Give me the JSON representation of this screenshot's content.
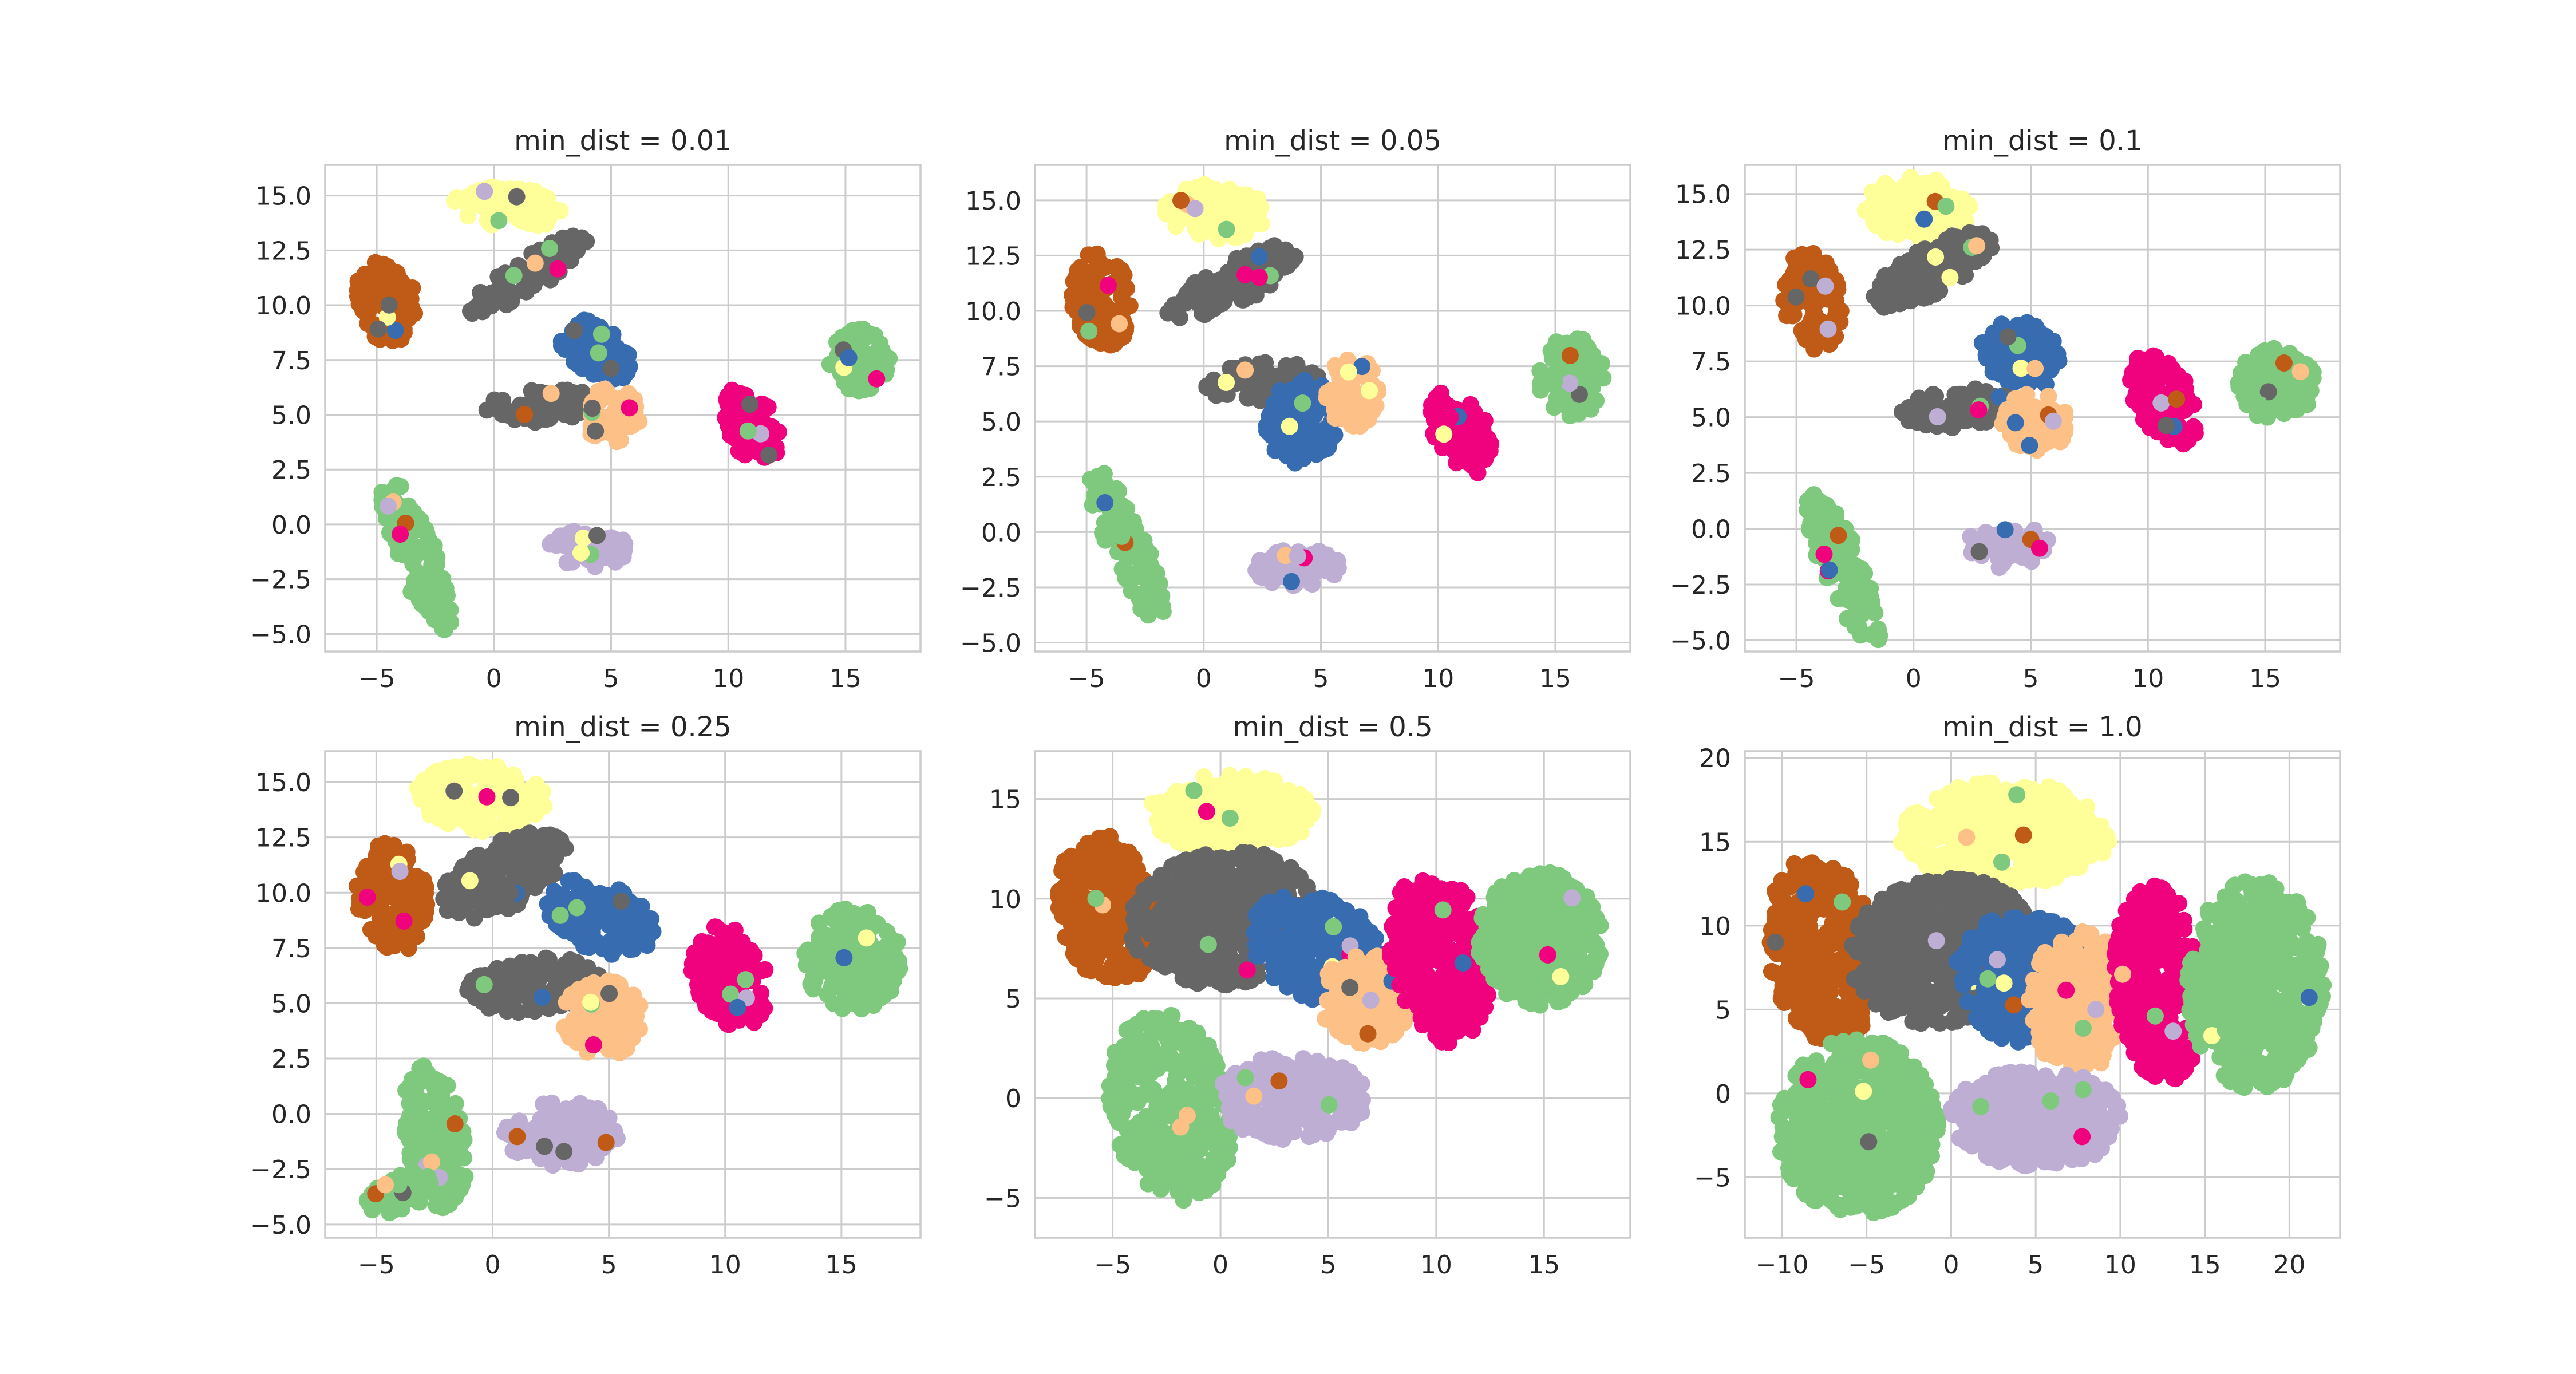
{
  "chart_data": [
    {
      "type": "scatter",
      "title": "min_dist = 0.01",
      "xlim": [
        -7.2,
        18.2
      ],
      "ylim": [
        -5.8,
        16.4
      ],
      "xticks": [
        -5,
        0,
        5,
        10,
        15
      ],
      "yticks": [
        -5.0,
        -2.5,
        0.0,
        2.5,
        5.0,
        7.5,
        10.0,
        12.5,
        15.0
      ],
      "xtick_labels": [
        "−5",
        "0",
        "5",
        "10",
        "15"
      ],
      "ytick_labels": [
        "−5.0",
        "−2.5",
        "0.0",
        "2.5",
        "5.0",
        "7.5",
        "10.0",
        "12.5",
        "15.0"
      ],
      "grid": true,
      "clusters": [
        {
          "color": "#ffff99",
          "cx": 0.7,
          "cy": 14.5,
          "rx": 2.5,
          "ry": 1.0,
          "angle": -5
        },
        {
          "color": "#bf5b17",
          "cx": -4.6,
          "cy": 10.2,
          "rx": 1.3,
          "ry": 2.0,
          "angle": 10
        },
        {
          "color": "#666666",
          "cx": 1.5,
          "cy": 11.4,
          "rx": 3.2,
          "ry": 0.8,
          "angle": 35
        },
        {
          "color": "#386cb0",
          "cx": 4.3,
          "cy": 8.0,
          "rx": 1.9,
          "ry": 1.1,
          "angle": -40
        },
        {
          "color": "#666666",
          "cx": 2.0,
          "cy": 5.4,
          "rx": 2.6,
          "ry": 0.8,
          "angle": 5
        },
        {
          "color": "#fdc086",
          "cx": 5.0,
          "cy": 5.0,
          "rx": 1.3,
          "ry": 1.3,
          "angle": 0
        },
        {
          "color": "#f0027f",
          "cx": 11.0,
          "cy": 4.5,
          "rx": 1.1,
          "ry": 2.0,
          "angle": 20
        },
        {
          "color": "#7fc97f",
          "cx": 15.6,
          "cy": 7.5,
          "rx": 1.4,
          "ry": 1.5,
          "angle": 0
        },
        {
          "color": "#7fc97f",
          "cx": -3.3,
          "cy": -1.4,
          "rx": 0.9,
          "ry": 3.8,
          "angle": 20
        },
        {
          "color": "#beaed4",
          "cx": 4.0,
          "cy": -1.1,
          "rx": 1.8,
          "ry": 0.9,
          "angle": 0
        }
      ]
    },
    {
      "type": "scatter",
      "title": "min_dist = 0.05",
      "xlim": [
        -7.2,
        18.2
      ],
      "ylim": [
        -5.4,
        16.6
      ],
      "xticks": [
        -5,
        0,
        5,
        10,
        15
      ],
      "yticks": [
        -5.0,
        -2.5,
        0.0,
        2.5,
        5.0,
        7.5,
        10.0,
        12.5,
        15.0
      ],
      "xtick_labels": [
        "−5",
        "0",
        "5",
        "10",
        "15"
      ],
      "ytick_labels": [
        "−5.0",
        "−2.5",
        "0.0",
        "2.5",
        "5.0",
        "7.5",
        "10.0",
        "12.5",
        "15.0"
      ],
      "grid": true,
      "clusters": [
        {
          "color": "#ffff99",
          "cx": 0.5,
          "cy": 14.5,
          "rx": 2.3,
          "ry": 1.3,
          "angle": -5
        },
        {
          "color": "#bf5b17",
          "cx": -4.4,
          "cy": 10.5,
          "rx": 1.4,
          "ry": 2.2,
          "angle": 10
        },
        {
          "color": "#666666",
          "cx": 1.2,
          "cy": 11.2,
          "rx": 3.3,
          "ry": 1.0,
          "angle": 30
        },
        {
          "color": "#666666",
          "cx": 2.5,
          "cy": 6.8,
          "rx": 2.5,
          "ry": 0.9,
          "angle": 5
        },
        {
          "color": "#386cb0",
          "cx": 4.2,
          "cy": 5.0,
          "rx": 1.6,
          "ry": 2.0,
          "angle": -10
        },
        {
          "color": "#fdc086",
          "cx": 6.3,
          "cy": 6.3,
          "rx": 1.2,
          "ry": 1.7,
          "angle": 0
        },
        {
          "color": "#f0027f",
          "cx": 11.0,
          "cy": 4.5,
          "rx": 1.2,
          "ry": 2.1,
          "angle": 25
        },
        {
          "color": "#7fc97f",
          "cx": 15.7,
          "cy": 7.0,
          "rx": 1.5,
          "ry": 1.9,
          "angle": 0
        },
        {
          "color": "#7fc97f",
          "cx": -3.3,
          "cy": -0.6,
          "rx": 0.9,
          "ry": 3.8,
          "angle": 22
        },
        {
          "color": "#beaed4",
          "cx": 4.0,
          "cy": -1.6,
          "rx": 1.9,
          "ry": 0.9,
          "angle": 0
        }
      ]
    },
    {
      "type": "scatter",
      "title": "min_dist = 0.1",
      "xlim": [
        -7.2,
        18.2
      ],
      "ylim": [
        -5.5,
        16.3
      ],
      "xticks": [
        -5,
        0,
        5,
        10,
        15
      ],
      "yticks": [
        -5.0,
        -2.5,
        0.0,
        2.5,
        5.0,
        7.5,
        10.0,
        12.5,
        15.0
      ],
      "xtick_labels": [
        "−5",
        "0",
        "5",
        "10",
        "15"
      ],
      "ytick_labels": [
        "−5.0",
        "−2.5",
        "0.0",
        "2.5",
        "5.0",
        "7.5",
        "10.0",
        "12.5",
        "15.0"
      ],
      "grid": true,
      "clusters": [
        {
          "color": "#ffff99",
          "cx": 0.2,
          "cy": 14.3,
          "rx": 2.4,
          "ry": 1.5,
          "angle": -5
        },
        {
          "color": "#bf5b17",
          "cx": -4.3,
          "cy": 10.2,
          "rx": 1.3,
          "ry": 2.3,
          "angle": 10
        },
        {
          "color": "#666666",
          "cx": 0.8,
          "cy": 11.6,
          "rx": 3.0,
          "ry": 1.1,
          "angle": 30
        },
        {
          "color": "#386cb0",
          "cx": 4.6,
          "cy": 7.8,
          "rx": 1.9,
          "ry": 1.5,
          "angle": -35
        },
        {
          "color": "#666666",
          "cx": 2.0,
          "cy": 5.4,
          "rx": 2.6,
          "ry": 0.9,
          "angle": 5
        },
        {
          "color": "#fdc086",
          "cx": 5.2,
          "cy": 4.8,
          "rx": 1.5,
          "ry": 1.4,
          "angle": 0
        },
        {
          "color": "#f0027f",
          "cx": 10.7,
          "cy": 5.8,
          "rx": 1.3,
          "ry": 2.3,
          "angle": 25
        },
        {
          "color": "#7fc97f",
          "cx": 15.5,
          "cy": 6.5,
          "rx": 1.8,
          "ry": 1.7,
          "angle": 0
        },
        {
          "color": "#7fc97f",
          "cx": -3.0,
          "cy": -1.8,
          "rx": 0.9,
          "ry": 3.8,
          "angle": 22
        },
        {
          "color": "#beaed4",
          "cx": 4.0,
          "cy": -0.8,
          "rx": 1.9,
          "ry": 1.0,
          "angle": 0
        }
      ]
    },
    {
      "type": "scatter",
      "title": "min_dist = 0.25",
      "xlim": [
        -7.2,
        18.4
      ],
      "ylim": [
        -5.6,
        16.4
      ],
      "xticks": [
        -5,
        0,
        5,
        10,
        15
      ],
      "yticks": [
        -5.0,
        -2.5,
        0.0,
        2.5,
        5.0,
        7.5,
        10.0,
        12.5,
        15.0
      ],
      "xtick_labels": [
        "−5",
        "0",
        "5",
        "10",
        "15"
      ],
      "ytick_labels": [
        "−5.0",
        "−2.5",
        "0.0",
        "2.5",
        "5.0",
        "7.5",
        "10.0",
        "12.5",
        "15.0"
      ],
      "grid": true,
      "clusters": [
        {
          "color": "#ffff99",
          "cx": -0.5,
          "cy": 14.3,
          "rx": 2.9,
          "ry": 1.6,
          "angle": -5
        },
        {
          "color": "#bf5b17",
          "cx": -4.3,
          "cy": 9.8,
          "rx": 1.6,
          "ry": 2.6,
          "angle": 10
        },
        {
          "color": "#666666",
          "cx": 0.5,
          "cy": 10.8,
          "rx": 3.2,
          "ry": 1.5,
          "angle": 30
        },
        {
          "color": "#386cb0",
          "cx": 4.6,
          "cy": 8.9,
          "rx": 2.6,
          "ry": 1.6,
          "angle": -25
        },
        {
          "color": "#666666",
          "cx": 1.8,
          "cy": 5.8,
          "rx": 3.0,
          "ry": 1.3,
          "angle": 5
        },
        {
          "color": "#fdc086",
          "cx": 4.8,
          "cy": 4.3,
          "rx": 1.9,
          "ry": 1.8,
          "angle": 0
        },
        {
          "color": "#f0027f",
          "cx": 10.2,
          "cy": 6.2,
          "rx": 1.6,
          "ry": 2.5,
          "angle": 20
        },
        {
          "color": "#7fc97f",
          "cx": 15.5,
          "cy": 7.0,
          "rx": 2.2,
          "ry": 2.4,
          "angle": 0
        },
        {
          "color": "#7fc97f",
          "cx": -2.5,
          "cy": -1.0,
          "rx": 1.3,
          "ry": 3.5,
          "angle": 10
        },
        {
          "color": "#7fc97f",
          "cx": -4.0,
          "cy": -3.6,
          "rx": 1.6,
          "ry": 0.8,
          "angle": 20
        },
        {
          "color": "#beaed4",
          "cx": 3.0,
          "cy": -0.9,
          "rx": 2.6,
          "ry": 1.5,
          "angle": 0
        }
      ]
    },
    {
      "type": "scatter",
      "title": "min_dist = 0.5",
      "xlim": [
        -8.6,
        19.0
      ],
      "ylim": [
        -7.0,
        17.4
      ],
      "xticks": [
        -5,
        0,
        5,
        10,
        15
      ],
      "yticks": [
        -5,
        0,
        5,
        10,
        15
      ],
      "xtick_labels": [
        "−5",
        "0",
        "5",
        "10",
        "15"
      ],
      "ytick_labels": [
        "−5",
        "0",
        "5",
        "10",
        "15"
      ],
      "grid": true,
      "clusters": [
        {
          "color": "#ffff99",
          "cx": 0.5,
          "cy": 14.3,
          "rx": 4.0,
          "ry": 2.0,
          "angle": 0
        },
        {
          "color": "#bf5b17",
          "cx": -5.3,
          "cy": 9.5,
          "rx": 2.3,
          "ry": 4.0,
          "angle": 10
        },
        {
          "color": "#666666",
          "cx": 0.2,
          "cy": 9.0,
          "rx": 4.6,
          "ry": 3.5,
          "angle": 10
        },
        {
          "color": "#386cb0",
          "cx": 4.5,
          "cy": 7.5,
          "rx": 3.5,
          "ry": 2.6,
          "angle": -30
        },
        {
          "color": "#fdc086",
          "cx": 6.8,
          "cy": 5.0,
          "rx": 2.3,
          "ry": 2.4,
          "angle": 0
        },
        {
          "color": "#f0027f",
          "cx": 10.2,
          "cy": 7.0,
          "rx": 2.4,
          "ry": 4.5,
          "angle": 10
        },
        {
          "color": "#7fc97f",
          "cx": 14.8,
          "cy": 8.0,
          "rx": 3.0,
          "ry": 3.5,
          "angle": 0
        },
        {
          "color": "#7fc97f",
          "cx": -2.3,
          "cy": -0.5,
          "rx": 2.9,
          "ry": 5.0,
          "angle": 10
        },
        {
          "color": "#beaed4",
          "cx": 3.3,
          "cy": 0.0,
          "rx": 3.6,
          "ry": 2.2,
          "angle": 0
        }
      ]
    },
    {
      "type": "scatter",
      "title": "min_dist = 1.0",
      "xlim": [
        -12.2,
        23.0
      ],
      "ylim": [
        -8.6,
        20.4
      ],
      "xticks": [
        -10,
        -5,
        0,
        5,
        10,
        15,
        20
      ],
      "yticks": [
        -5,
        0,
        5,
        10,
        15,
        20
      ],
      "xtick_labels": [
        "−10",
        "−5",
        "0",
        "5",
        "10",
        "15",
        "20"
      ],
      "ytick_labels": [
        "−5",
        "0",
        "5",
        "10",
        "15",
        "20"
      ],
      "grid": true,
      "clusters": [
        {
          "color": "#ffff99",
          "cx": 3.2,
          "cy": 15.5,
          "rx": 6.5,
          "ry": 3.2,
          "angle": 0
        },
        {
          "color": "#bf5b17",
          "cx": -7.6,
          "cy": 8.5,
          "rx": 3.4,
          "ry": 5.8,
          "angle": 10
        },
        {
          "color": "#666666",
          "cx": -0.5,
          "cy": 8.5,
          "rx": 5.8,
          "ry": 4.5,
          "angle": 10
        },
        {
          "color": "#386cb0",
          "cx": 4.5,
          "cy": 6.8,
          "rx": 4.5,
          "ry": 4.0,
          "angle": -20
        },
        {
          "color": "#fdc086",
          "cx": 7.5,
          "cy": 5.5,
          "rx": 3.0,
          "ry": 4.5,
          "angle": 0
        },
        {
          "color": "#f0027f",
          "cx": 12.3,
          "cy": 6.5,
          "rx": 2.7,
          "ry": 6.2,
          "angle": 5
        },
        {
          "color": "#7fc97f",
          "cx": 18.0,
          "cy": 6.5,
          "rx": 4.2,
          "ry": 6.5,
          "angle": 0
        },
        {
          "color": "#7fc97f",
          "cx": -5.5,
          "cy": -2.0,
          "rx": 5.0,
          "ry": 5.5,
          "angle": 0
        },
        {
          "color": "#beaed4",
          "cx": 5.0,
          "cy": -1.5,
          "rx": 5.5,
          "ry": 3.0,
          "angle": 0
        }
      ]
    }
  ]
}
